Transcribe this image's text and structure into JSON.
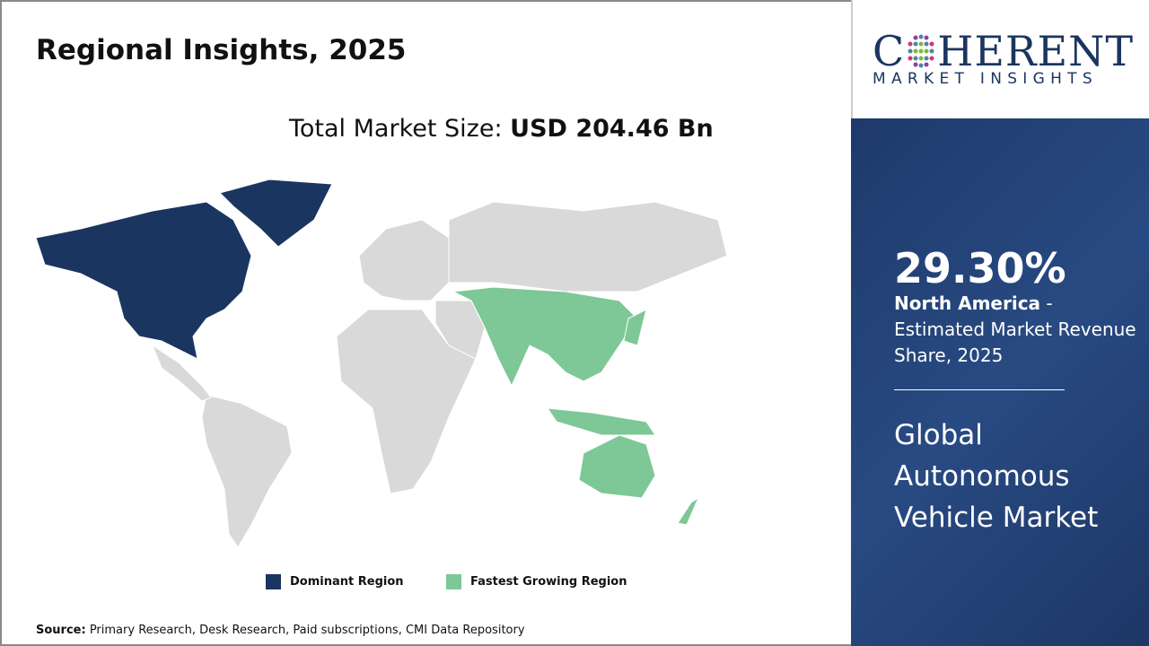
{
  "title": "Regional Insights, 2025",
  "total": {
    "label": "Total Market Size: ",
    "value": "USD 204.46 Bn"
  },
  "legend": [
    {
      "label": "Dominant Region",
      "color": "#1b3561"
    },
    {
      "label": "Fastest Growing Region",
      "color": "#7dc896"
    }
  ],
  "colors": {
    "other": "#d9d9d9",
    "dominant": "#1b3561",
    "fastest": "#7dc896"
  },
  "source": {
    "label": "Source:",
    "text": " Primary Research, Desk Research, Paid subscriptions, CMI Data Repository"
  },
  "logo": {
    "top": "COHERENT",
    "bottom": "MARKET INSIGHTS"
  },
  "panel": {
    "percent": "29.30%",
    "region": "North America",
    "desc": " - Estimated Market Revenue Share, 2025",
    "market": "Global Autonomous Vehicle Market"
  }
}
